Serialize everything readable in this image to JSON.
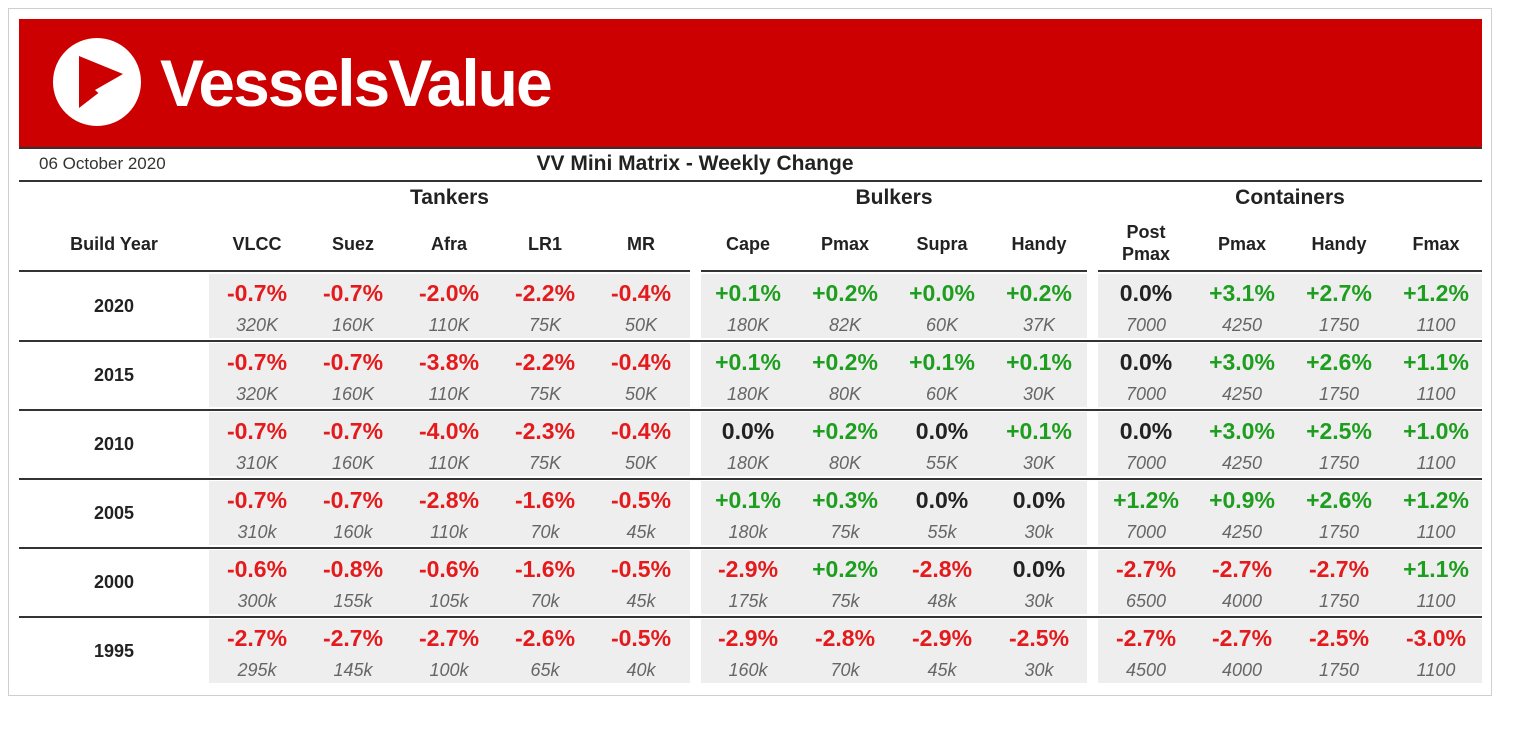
{
  "header": {
    "brand": "VesselsValue",
    "date": "06 October 2020",
    "title": "VV Mini Matrix - Weekly Change",
    "colors": {
      "banner": "#cc0000",
      "negative": "#e41a1c",
      "positive": "#1e9e1e",
      "neutral": "#222222",
      "cell_bg": "#eeeeee"
    }
  },
  "groups": [
    "Tankers",
    "Bulkers",
    "Containers"
  ],
  "build_year_label": "Build Year",
  "columns": [
    "VLCC",
    "Suez",
    "Afra",
    "LR1",
    "MR",
    "Cape",
    "Pmax",
    "Supra",
    "Handy",
    "Post\nPmax",
    "Pmax",
    "Handy",
    "Fmax"
  ],
  "rows": [
    {
      "year": "2020",
      "pct": [
        "-0.7%",
        "-0.7%",
        "-2.0%",
        "-2.2%",
        "-0.4%",
        "+0.1%",
        "+0.2%",
        "+0.0%",
        "+0.2%",
        "0.0%",
        "+3.1%",
        "+2.7%",
        "+1.2%"
      ],
      "size": [
        "320K",
        "160K",
        "110K",
        "75K",
        "50K",
        "180K",
        "82K",
        "60K",
        "37K",
        "7000",
        "4250",
        "1750",
        "1100"
      ]
    },
    {
      "year": "2015",
      "pct": [
        "-0.7%",
        "-0.7%",
        "-3.8%",
        "-2.2%",
        "-0.4%",
        "+0.1%",
        "+0.2%",
        "+0.1%",
        "+0.1%",
        "0.0%",
        "+3.0%",
        "+2.6%",
        "+1.1%"
      ],
      "size": [
        "320K",
        "160K",
        "110K",
        "75K",
        "50K",
        "180K",
        "80K",
        "60K",
        "30K",
        "7000",
        "4250",
        "1750",
        "1100"
      ]
    },
    {
      "year": "2010",
      "pct": [
        "-0.7%",
        "-0.7%",
        "-4.0%",
        "-2.3%",
        "-0.4%",
        "0.0%",
        "+0.2%",
        "0.0%",
        "+0.1%",
        "0.0%",
        "+3.0%",
        "+2.5%",
        "+1.0%"
      ],
      "size": [
        "310K",
        "160K",
        "110K",
        "75K",
        "50K",
        "180K",
        "80K",
        "55K",
        "30K",
        "7000",
        "4250",
        "1750",
        "1100"
      ]
    },
    {
      "year": "2005",
      "pct": [
        "-0.7%",
        "-0.7%",
        "-2.8%",
        "-1.6%",
        "-0.5%",
        "+0.1%",
        "+0.3%",
        "0.0%",
        "0.0%",
        "+1.2%",
        "+0.9%",
        "+2.6%",
        "+1.2%"
      ],
      "size": [
        "310k",
        "160k",
        "110k",
        "70k",
        "45k",
        "180k",
        "75k",
        "55k",
        "30k",
        "7000",
        "4250",
        "1750",
        "1100"
      ]
    },
    {
      "year": "2000",
      "pct": [
        "-0.6%",
        "-0.8%",
        "-0.6%",
        "-1.6%",
        "-0.5%",
        "-2.9%",
        "+0.2%",
        "-2.8%",
        "0.0%",
        "-2.7%",
        "-2.7%",
        "-2.7%",
        "+1.1%"
      ],
      "size": [
        "300k",
        "155k",
        "105k",
        "70k",
        "45k",
        "175k",
        "75k",
        "48k",
        "30k",
        "6500",
        "4000",
        "1750",
        "1100"
      ]
    },
    {
      "year": "1995",
      "pct": [
        "-2.7%",
        "-2.7%",
        "-2.7%",
        "-2.6%",
        "-0.5%",
        "-2.9%",
        "-2.8%",
        "-2.9%",
        "-2.5%",
        "-2.7%",
        "-2.7%",
        "-2.5%",
        "-3.0%"
      ],
      "size": [
        "295k",
        "145k",
        "100k",
        "65k",
        "40k",
        "160k",
        "70k",
        "45k",
        "30k",
        "4500",
        "4000",
        "1750",
        "1100"
      ]
    }
  ]
}
